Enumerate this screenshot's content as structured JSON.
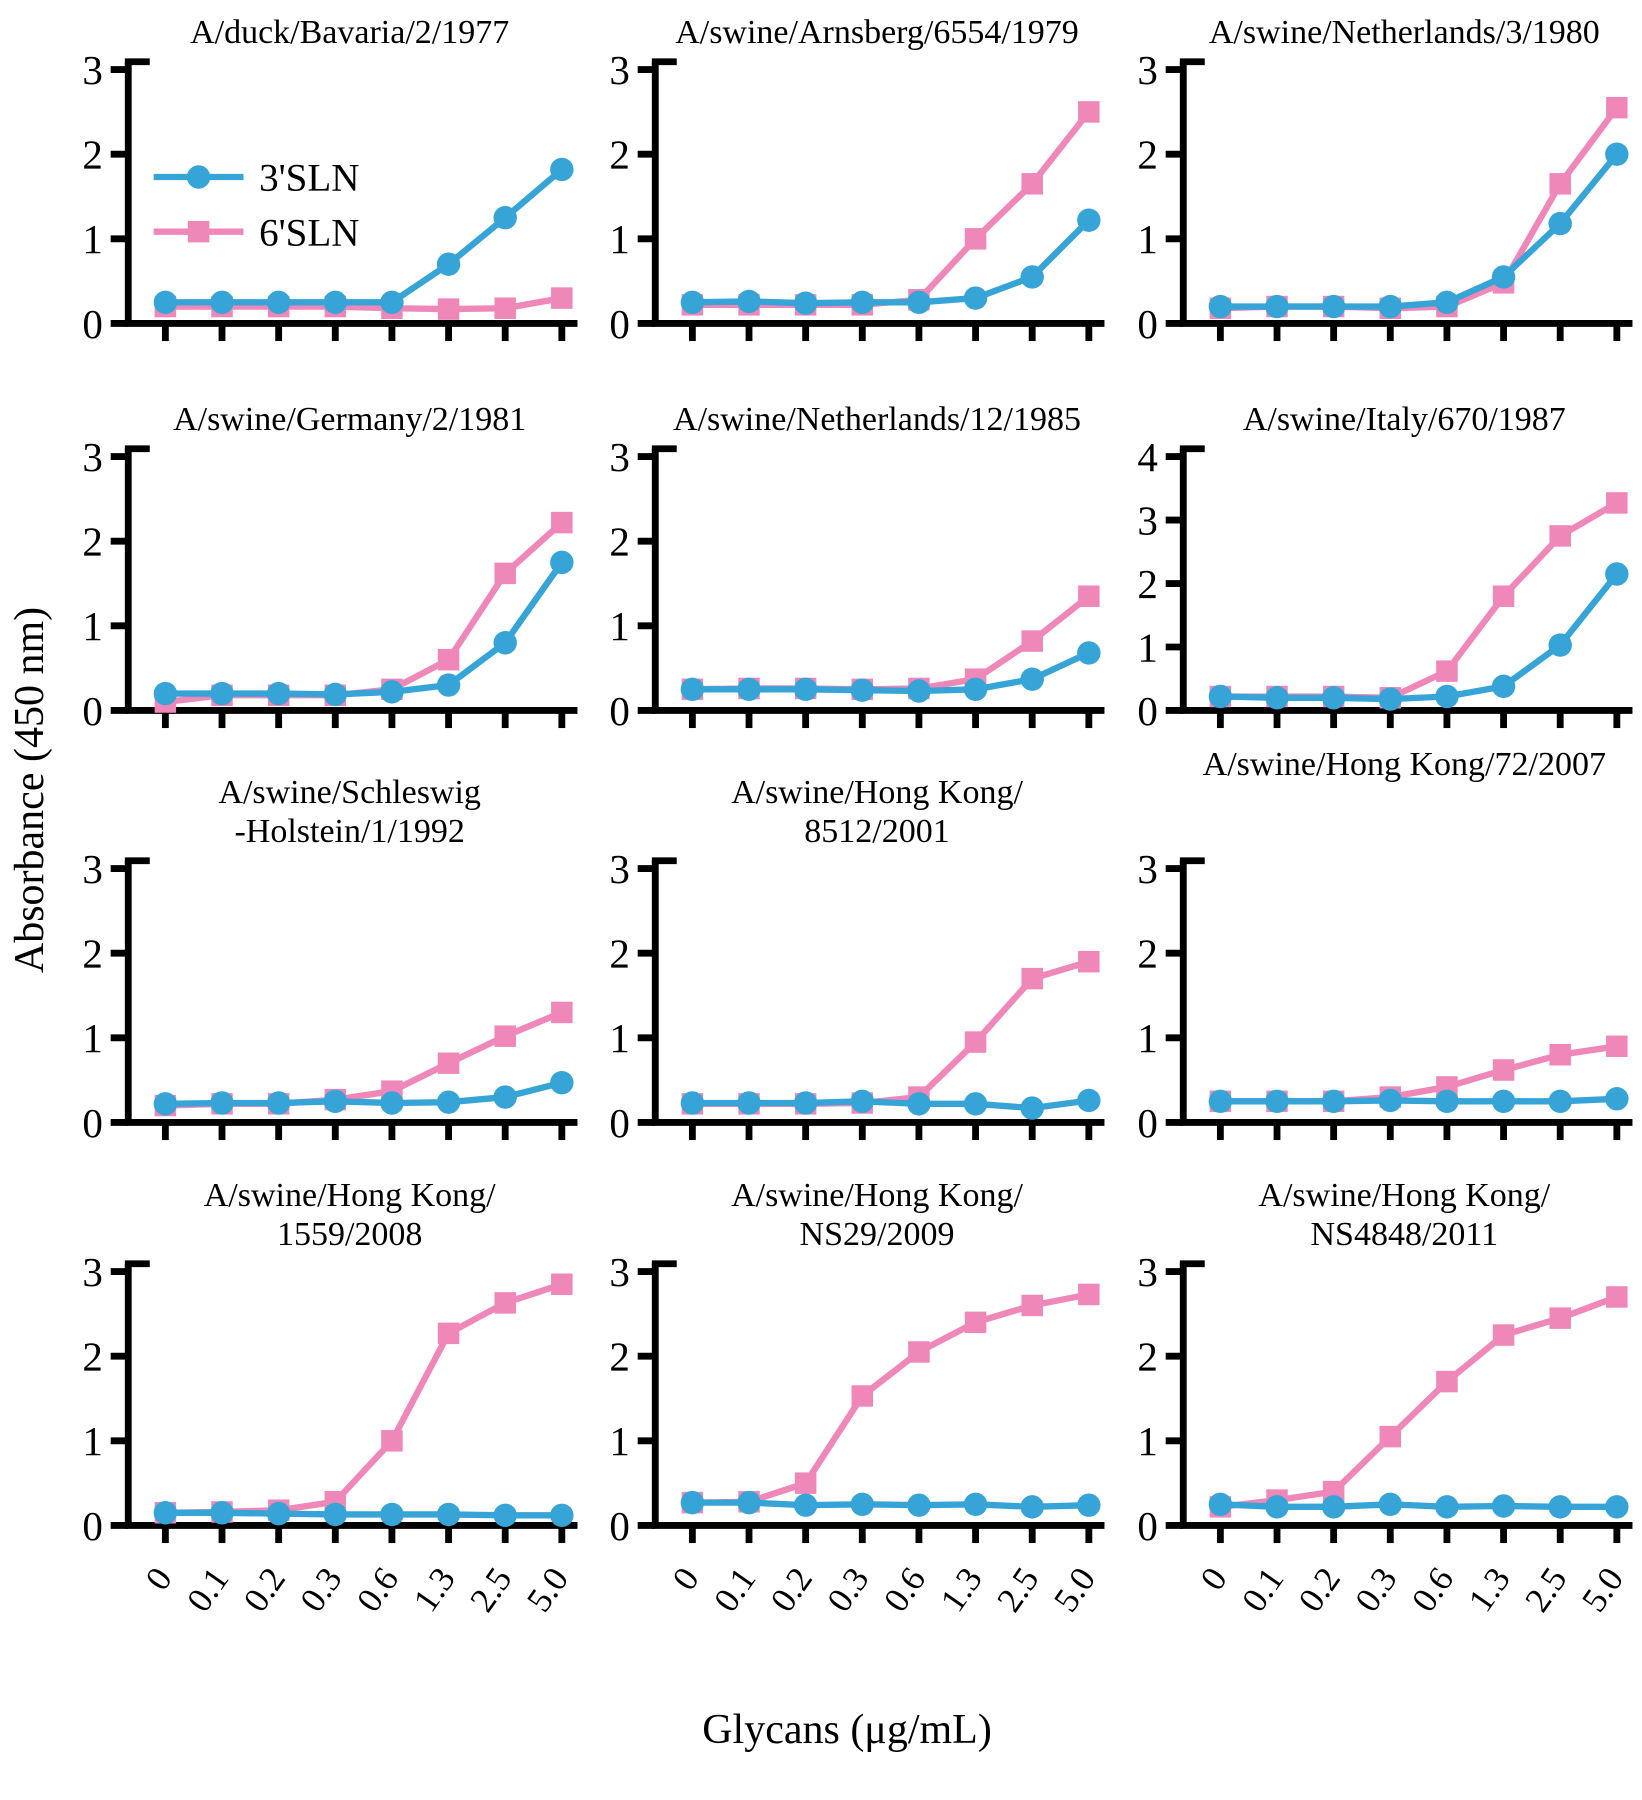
{
  "figure": {
    "y_axis_label": "Absorbance (450 nm)",
    "x_axis_label": "Glycans (μg/mL)",
    "type": "line",
    "x_categories": [
      "0",
      "0.1",
      "0.2",
      "0.3",
      "0.6",
      "1.3",
      "2.5",
      "5.0"
    ],
    "legend": [
      {
        "label": "3'SLN",
        "marker": "circle",
        "color": "#36A4D6"
      },
      {
        "label": "6'SLN",
        "marker": "square",
        "color": "#EF87B9"
      }
    ],
    "colors": {
      "axis": "#000000",
      "series_3sln": "#36A4D6",
      "series_6sln": "#EF87B9"
    }
  },
  "chart_data": [
    {
      "type": "line",
      "title_lines": [
        "A/duck/Bavaria/2/1977"
      ],
      "ylim": [
        0,
        3
      ],
      "legend": true,
      "series": [
        {
          "name": "3'SLN",
          "values": [
            0.25,
            0.25,
            0.25,
            0.25,
            0.25,
            0.7,
            1.25,
            1.82
          ]
        },
        {
          "name": "6'SLN",
          "values": [
            0.2,
            0.2,
            0.2,
            0.2,
            0.18,
            0.17,
            0.18,
            0.3
          ]
        }
      ]
    },
    {
      "type": "line",
      "title_lines": [
        "A/swine/Arnsberg/6554/1979"
      ],
      "ylim": [
        0,
        3
      ],
      "legend": false,
      "series": [
        {
          "name": "3'SLN",
          "values": [
            0.25,
            0.26,
            0.24,
            0.25,
            0.25,
            0.3,
            0.55,
            1.22
          ]
        },
        {
          "name": "6'SLN",
          "values": [
            0.22,
            0.22,
            0.22,
            0.22,
            0.28,
            1.0,
            1.65,
            2.5
          ]
        }
      ]
    },
    {
      "type": "line",
      "title_lines": [
        "A/swine/Netherlands/3/1980"
      ],
      "ylim": [
        0,
        3
      ],
      "legend": false,
      "series": [
        {
          "name": "3'SLN",
          "values": [
            0.2,
            0.2,
            0.2,
            0.2,
            0.25,
            0.55,
            1.18,
            2.0
          ]
        },
        {
          "name": "6'SLN",
          "values": [
            0.18,
            0.2,
            0.2,
            0.18,
            0.2,
            0.48,
            1.65,
            2.55
          ]
        }
      ]
    },
    {
      "type": "line",
      "title_lines": [
        "A/swine/Germany/2/1981"
      ],
      "ylim": [
        0,
        3
      ],
      "legend": false,
      "series": [
        {
          "name": "3'SLN",
          "values": [
            0.2,
            0.2,
            0.2,
            0.19,
            0.22,
            0.3,
            0.8,
            1.75
          ]
        },
        {
          "name": "6'SLN",
          "values": [
            0.1,
            0.18,
            0.18,
            0.18,
            0.25,
            0.6,
            1.62,
            2.22
          ]
        }
      ]
    },
    {
      "type": "line",
      "title_lines": [
        "A/swine/Netherlands/12/1985"
      ],
      "ylim": [
        0,
        3
      ],
      "legend": false,
      "series": [
        {
          "name": "3'SLN",
          "values": [
            0.25,
            0.25,
            0.25,
            0.24,
            0.23,
            0.25,
            0.37,
            0.68
          ]
        },
        {
          "name": "6'SLN",
          "values": [
            0.25,
            0.26,
            0.26,
            0.25,
            0.26,
            0.37,
            0.82,
            1.35
          ]
        }
      ]
    },
    {
      "type": "line",
      "title_lines": [
        "A/swine/Italy/670/1987"
      ],
      "ylim": [
        0,
        4
      ],
      "legend": false,
      "series": [
        {
          "name": "3'SLN",
          "values": [
            0.22,
            0.2,
            0.2,
            0.18,
            0.22,
            0.38,
            1.03,
            2.15
          ]
        },
        {
          "name": "6'SLN",
          "values": [
            0.22,
            0.22,
            0.22,
            0.2,
            0.62,
            1.8,
            2.75,
            3.27
          ]
        }
      ]
    },
    {
      "type": "line",
      "title_lines": [
        "A/swine/Schleswig",
        "-Holstein/1/1992"
      ],
      "ylim": [
        0,
        3
      ],
      "legend": false,
      "series": [
        {
          "name": "3'SLN",
          "values": [
            0.22,
            0.23,
            0.23,
            0.25,
            0.23,
            0.24,
            0.3,
            0.47
          ]
        },
        {
          "name": "6'SLN",
          "values": [
            0.2,
            0.22,
            0.22,
            0.27,
            0.37,
            0.7,
            1.02,
            1.3
          ]
        }
      ]
    },
    {
      "type": "line",
      "title_lines": [
        "A/swine/Hong Kong/",
        "8512/2001"
      ],
      "ylim": [
        0,
        3
      ],
      "legend": false,
      "series": [
        {
          "name": "3'SLN",
          "values": [
            0.23,
            0.23,
            0.23,
            0.25,
            0.22,
            0.22,
            0.17,
            0.26
          ]
        },
        {
          "name": "6'SLN",
          "values": [
            0.22,
            0.22,
            0.22,
            0.23,
            0.3,
            0.95,
            1.7,
            1.9
          ]
        }
      ]
    },
    {
      "type": "line",
      "title_lines": [
        "A/swine/Hong Kong/72/2007"
      ],
      "ylim": [
        0,
        3
      ],
      "legend": false,
      "series": [
        {
          "name": "3'SLN",
          "values": [
            0.25,
            0.25,
            0.25,
            0.26,
            0.25,
            0.25,
            0.25,
            0.28
          ]
        },
        {
          "name": "6'SLN",
          "values": [
            0.25,
            0.25,
            0.25,
            0.3,
            0.42,
            0.62,
            0.8,
            0.9
          ]
        }
      ]
    },
    {
      "type": "line",
      "title_lines": [
        "A/swine/Hong Kong/",
        "1559/2008"
      ],
      "ylim": [
        0,
        3
      ],
      "legend": false,
      "series": [
        {
          "name": "3'SLN",
          "values": [
            0.15,
            0.15,
            0.14,
            0.13,
            0.13,
            0.13,
            0.12,
            0.12
          ]
        },
        {
          "name": "6'SLN",
          "values": [
            0.15,
            0.16,
            0.18,
            0.28,
            1.0,
            2.27,
            2.63,
            2.85
          ]
        }
      ]
    },
    {
      "type": "line",
      "title_lines": [
        "A/swine/Hong Kong/",
        "NS29/2009"
      ],
      "ylim": [
        0,
        3
      ],
      "legend": false,
      "series": [
        {
          "name": "3'SLN",
          "values": [
            0.27,
            0.27,
            0.24,
            0.25,
            0.24,
            0.25,
            0.22,
            0.24
          ]
        },
        {
          "name": "6'SLN",
          "values": [
            0.27,
            0.28,
            0.5,
            1.53,
            2.05,
            2.4,
            2.6,
            2.73
          ]
        }
      ]
    },
    {
      "type": "line",
      "title_lines": [
        "A/swine/Hong Kong/",
        "NS4848/2011"
      ],
      "ylim": [
        0,
        3
      ],
      "legend": false,
      "series": [
        {
          "name": "3'SLN",
          "values": [
            0.25,
            0.22,
            0.22,
            0.25,
            0.22,
            0.23,
            0.22,
            0.22
          ]
        },
        {
          "name": "6'SLN",
          "values": [
            0.22,
            0.3,
            0.4,
            1.05,
            1.7,
            2.25,
            2.45,
            2.7
          ]
        }
      ]
    }
  ]
}
